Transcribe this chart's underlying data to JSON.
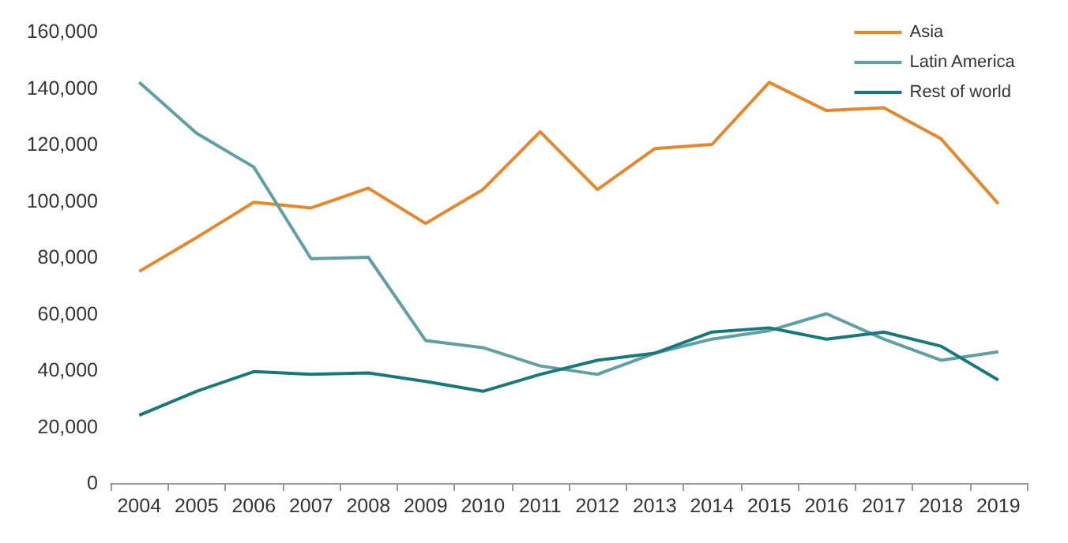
{
  "chart_data": {
    "type": "line",
    "categories": [
      "2004",
      "2005",
      "2006",
      "2007",
      "2008",
      "2009",
      "2010",
      "2011",
      "2012",
      "2013",
      "2014",
      "2015",
      "2016",
      "2017",
      "2018",
      "2019"
    ],
    "series": [
      {
        "name": "Asia",
        "color": "#e8872a",
        "values": [
          75000,
          87000,
          99500,
          97500,
          104500,
          92000,
          104000,
          124500,
          104000,
          118500,
          120000,
          142000,
          132000,
          133000,
          122000,
          99000
        ]
      },
      {
        "name": "Latin America",
        "color": "#5fa0a2",
        "values": [
          142000,
          124000,
          112000,
          79500,
          80000,
          50500,
          48000,
          41500,
          38500,
          46000,
          51000,
          54000,
          60000,
          51000,
          43500,
          46500
        ]
      },
      {
        "name": "Rest of world",
        "color": "#167a7c",
        "values": [
          24000,
          32500,
          39500,
          38500,
          39000,
          36000,
          32500,
          38500,
          43500,
          46000,
          53500,
          55000,
          51000,
          53500,
          48500,
          36500
        ]
      }
    ],
    "ylim": [
      0,
      160000
    ],
    "yticks": [
      0,
      {
        "value": 20000,
        "label": "20,000"
      },
      {
        "value": 40000,
        "label": "40,000"
      },
      {
        "value": 60000,
        "label": "60,000"
      },
      {
        "value": 80000,
        "label": "80,000"
      },
      {
        "value": 100000,
        "label": "100,000"
      },
      {
        "value": 120000,
        "label": "120,000"
      },
      {
        "value": 140000,
        "label": "140,000"
      },
      {
        "value": 160000,
        "label": "160,000"
      }
    ],
    "grid": false,
    "legend": "top right",
    "marker": "none",
    "line_style": "solid"
  }
}
